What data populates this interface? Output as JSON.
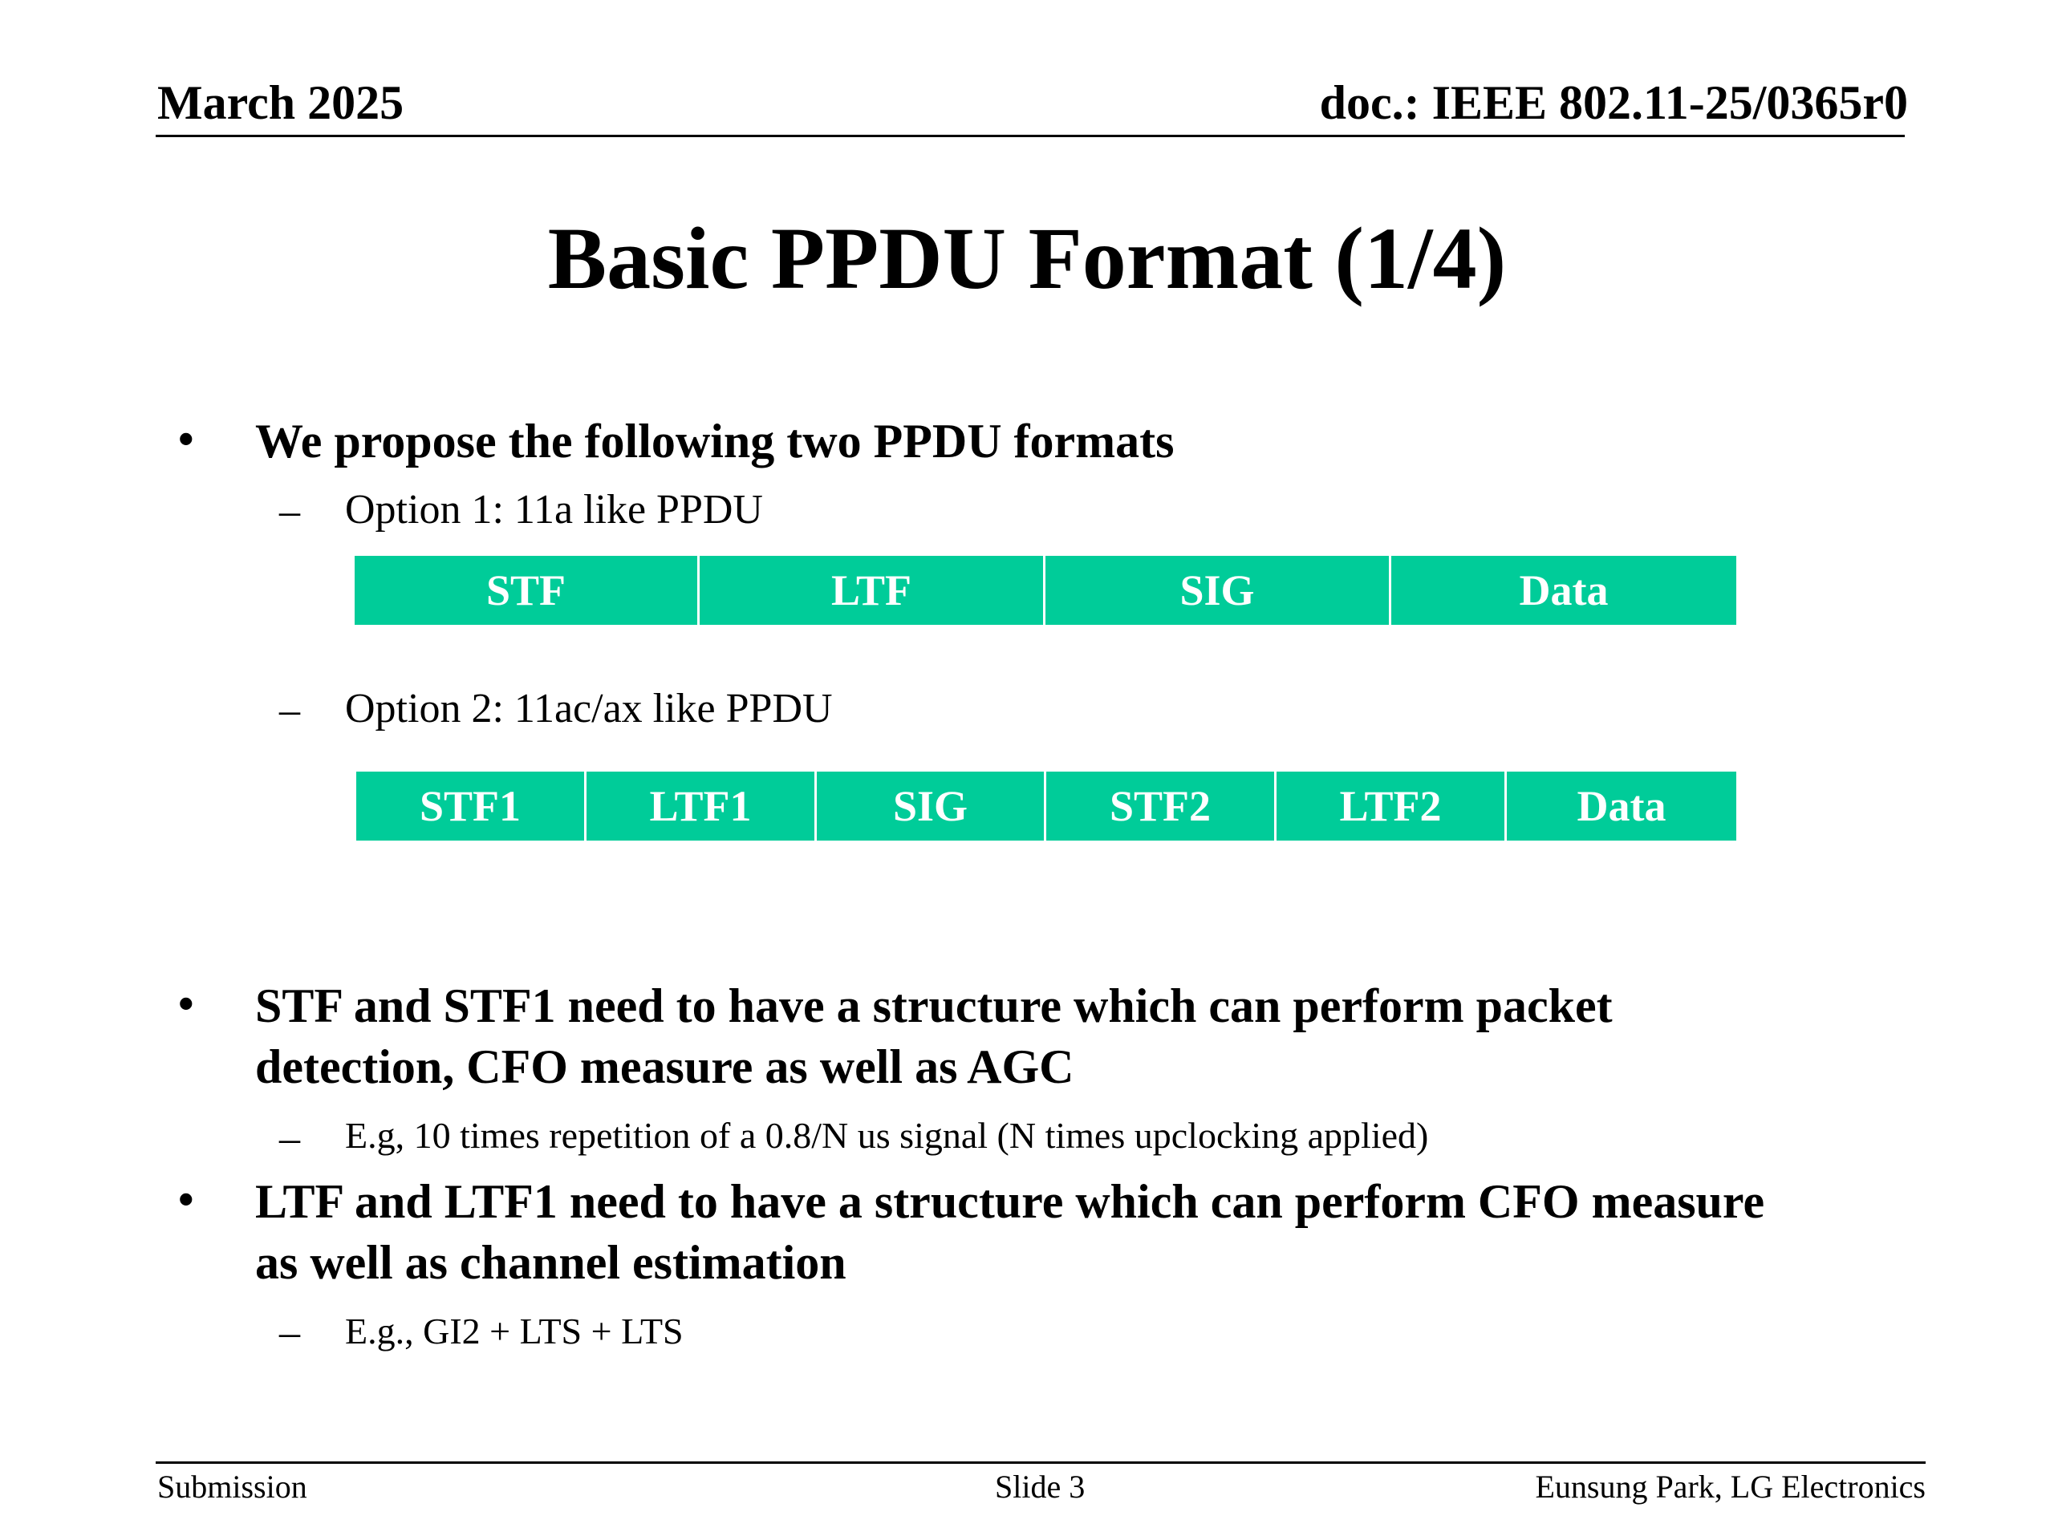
{
  "header": {
    "date": "March 2025",
    "doc_id": "doc.: IEEE 802.11-25/0365r0"
  },
  "title": "Basic PPDU Format (1/4)",
  "bullets": [
    {
      "marker": "•",
      "lines": [
        "We propose the following two PPDU formats"
      ],
      "subs": [
        {
          "marker": "–",
          "text": "Option 1: 11a like PPDU"
        },
        {
          "marker": "–",
          "text": "Option 2: 11ac/ax like PPDU"
        }
      ]
    },
    {
      "marker": "•",
      "lines": [
        "STF and STF1 need to have a structure which can perform packet",
        "detection, CFO measure as well as AGC"
      ],
      "subs": [
        {
          "marker": "–",
          "text": "E.g, 10 times repetition of a 0.8/N us signal (N times upclocking applied)"
        }
      ]
    },
    {
      "marker": "•",
      "lines": [
        "LTF and LTF1 need to have a structure which can perform CFO measure",
        "as well as channel estimation"
      ],
      "subs": [
        {
          "marker": "–",
          "text": "E.g., GI2 + LTS + LTS"
        }
      ]
    }
  ],
  "ppdu_option1": {
    "fields": [
      "STF",
      "LTF",
      "SIG",
      "Data"
    ],
    "color": "#00cc99"
  },
  "ppdu_option2": {
    "fields": [
      "STF1",
      "LTF1",
      "SIG",
      "STF2",
      "LTF2",
      "Data"
    ],
    "color": "#00cc99"
  },
  "footer": {
    "left": "Submission",
    "center": "Slide 3",
    "right": "Eunsung Park, LG Electronics"
  }
}
